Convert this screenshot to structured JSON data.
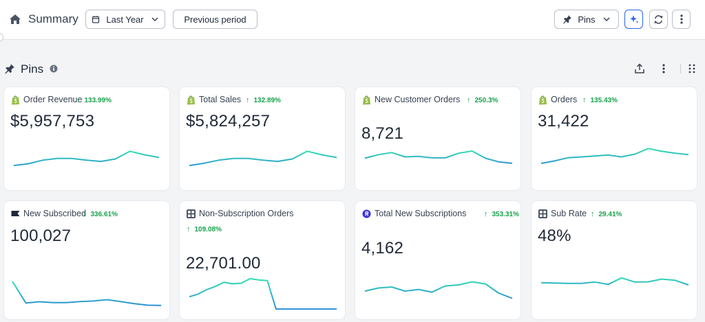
{
  "header": {
    "title": "Summary",
    "date_range": "Last Year",
    "compare": "Previous period",
    "view": "Pins"
  },
  "section": {
    "title": "Pins"
  },
  "colors": {
    "accent": "#2563eb",
    "positive": "#16a34a",
    "line_start": "#2b8fd6",
    "line_end": "#2fe0b0"
  },
  "cards": [
    {
      "name": "Order Revenue",
      "icon": "shopify-icon",
      "delta": "133.99%",
      "value": "$5,957,753",
      "trend": [
        0.15,
        0.25,
        0.45,
        0.55,
        0.55,
        0.45,
        0.38,
        0.52,
        0.95,
        0.75,
        0.6
      ]
    },
    {
      "name": "Total Sales",
      "icon": "shopify-icon",
      "delta": "132.89%",
      "value": "$5,824,257",
      "trend": [
        0.15,
        0.28,
        0.45,
        0.55,
        0.55,
        0.45,
        0.38,
        0.52,
        0.95,
        0.75,
        0.6
      ]
    },
    {
      "name": "New Customer Orders",
      "icon": "shopify-icon",
      "delta": "250.3%",
      "value": "8,721",
      "trend": [
        0.45,
        0.7,
        0.85,
        0.55,
        0.58,
        0.48,
        0.48,
        0.8,
        0.95,
        0.45,
        0.2,
        0.1
      ]
    },
    {
      "name": "Orders",
      "icon": "shopify-icon",
      "delta": "135.43%",
      "value": "31,422",
      "trend": [
        0.15,
        0.28,
        0.45,
        0.5,
        0.55,
        0.6,
        0.5,
        0.65,
        0.95,
        0.8,
        0.7,
        0.62
      ]
    },
    {
      "name": "New Subscribed",
      "icon": "klaviyo-flag-icon",
      "delta": "336.61%",
      "value": "100,027",
      "trend": [
        0.95,
        0.12,
        0.17,
        0.14,
        0.14,
        0.18,
        0.2,
        0.25,
        0.18,
        0.1,
        0.04,
        0.03
      ]
    },
    {
      "name": "Non-Subscription Orders",
      "icon": "grid-app-icon",
      "delta": "109.08%",
      "value": "22,701.00",
      "trend": [
        0.4,
        0.48,
        0.62,
        0.72,
        0.85,
        0.8,
        0.82,
        0.96,
        0.92,
        0.9,
        0.02,
        0.02,
        0.02,
        0.02,
        0.02,
        0.02,
        0.02,
        0.02
      ]
    },
    {
      "name": "Total New Subscriptions",
      "icon": "recharge-icon",
      "delta": "353.31%",
      "value": "4,162",
      "trend": [
        0.4,
        0.55,
        0.6,
        0.4,
        0.48,
        0.35,
        0.65,
        0.7,
        0.85,
        0.75,
        0.3,
        0.05
      ]
    },
    {
      "name": "Sub Rate",
      "icon": "grid-app-icon",
      "delta": "29.41%",
      "value": "48%",
      "trend": [
        0.55,
        0.52,
        0.48,
        0.48,
        0.6,
        0.4,
        0.95,
        0.6,
        0.62,
        0.85,
        0.75,
        0.35
      ]
    }
  ]
}
